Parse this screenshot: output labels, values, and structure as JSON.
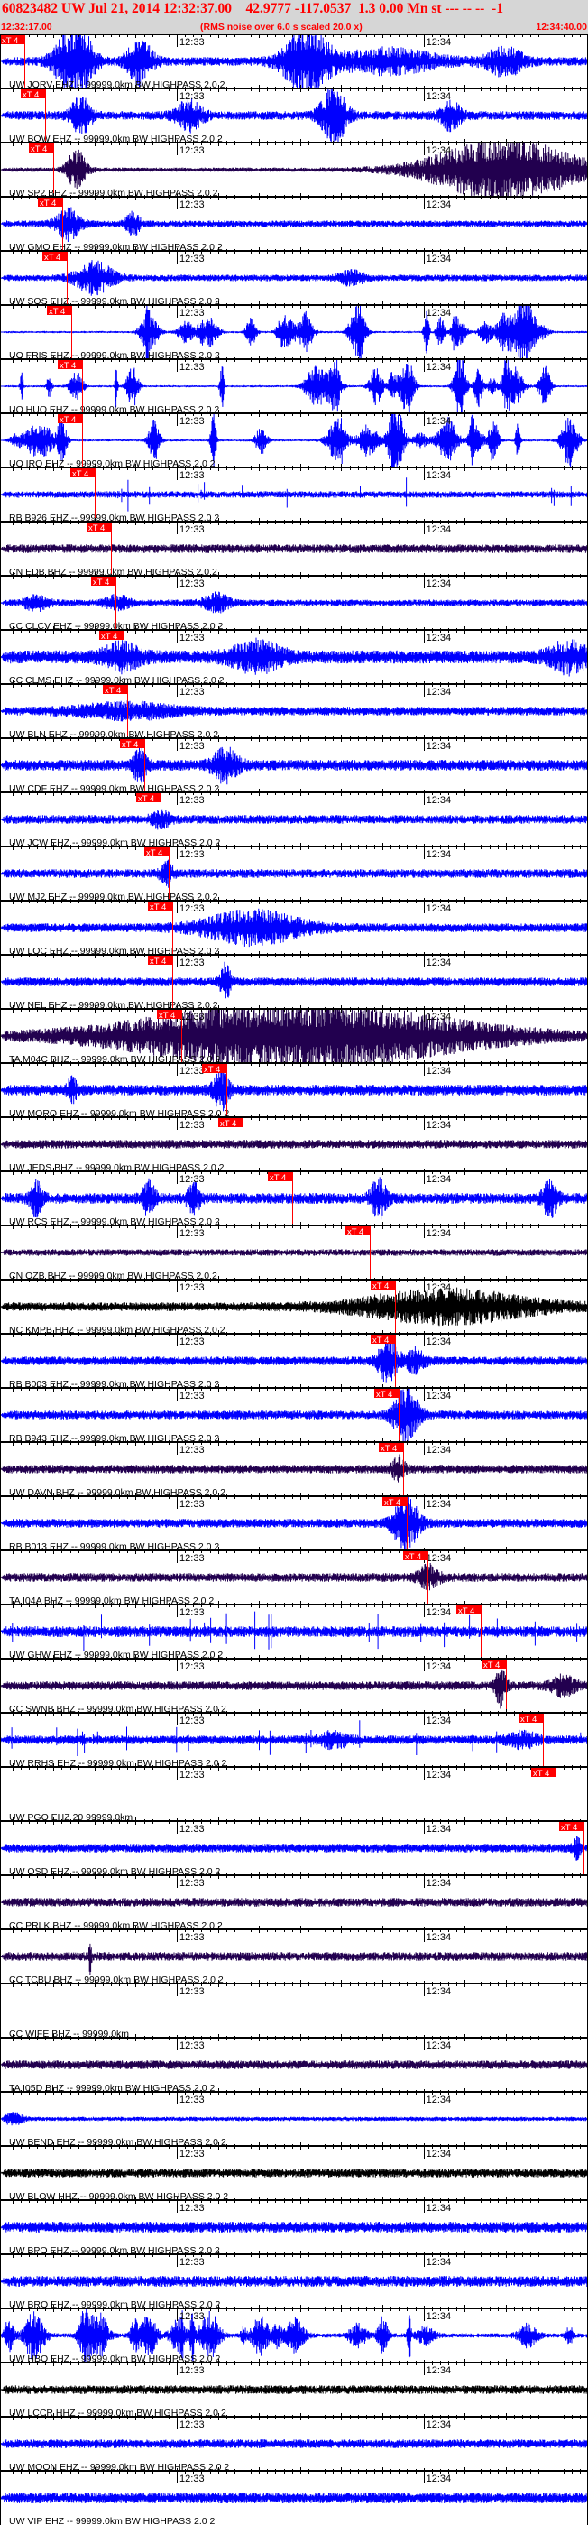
{
  "header": {
    "title": "60823482 UW Jul 21, 2014 12:32:37.00    42.9777 -117.0537  1.3 0.00 Mn st --- -- --  -1",
    "start_time": "12:32:17.00",
    "note": "(RMS noise over 6.0 s scaled 20.0 x)",
    "end_time": "12:34:40.00"
  },
  "chart_data": {
    "type": "line",
    "title": "60823482 UW Jul 21, 2014 12:32:37.00    42.9777 -117.0537  1.3 0.00 Mn st --- -- --  -1",
    "xlim": [
      "12:32:17.00",
      "12:34:40.00"
    ],
    "x_tick_labels": [
      "12:33",
      "12:34"
    ],
    "pick_label": "xT 4",
    "colors": {
      "EHZ": "#0000ff",
      "BHZ": "#22004f",
      "HHZ": "#000000",
      "pick": "#ff0000",
      "axis": "#000000"
    },
    "traces": [
      {
        "label": "UW JORV EHZ -- 99999.0km BW  HIGHPASS  2.0  2",
        "color": "#0000ff",
        "pick": "12:32:22.9"
      },
      {
        "label": "UW BOW EHZ -- 99999.0km BW  HIGHPASS  2.0  2",
        "color": "#0000ff",
        "pick": "12:32:28.0"
      },
      {
        "label": "UW SP2 BHZ -- 99999.0km BW  HIGHPASS  2.0  2",
        "color": "#22004f",
        "pick": "12:32:29.9"
      },
      {
        "label": "UW GMO EHZ -- 99999.0km BW  HIGHPASS  2.0  2",
        "color": "#0000ff",
        "pick": "12:32:32.1"
      },
      {
        "label": "UW SOS EHZ -- 99999.0km BW  HIGHPASS  2.0  2",
        "color": "#0000ff",
        "pick": "12:32:33.2"
      },
      {
        "label": "UO FRIS EHZ -- 99999.0km BW  HIGHPASS  2.0  2",
        "color": "#0000ff",
        "pick": "12:32:34.3"
      },
      {
        "label": "UO HUO EHZ -- 99999.0km BW  HIGHPASS  2.0  2",
        "color": "#0000ff",
        "pick": "12:32:37.0"
      },
      {
        "label": "UO IRO EHZ -- 99999.0km BW  HIGHPASS  2.0  2",
        "color": "#0000ff",
        "pick": "12:32:37.0"
      },
      {
        "label": "RB B926 EHZ -- 99999.0km BW  HIGHPASS  2.0  2",
        "color": "#0000ff",
        "pick": "12:32:40.0"
      },
      {
        "label": "CN EDB BHZ -- 99999.0km BW  HIGHPASS  2.0  2",
        "color": "#22004f",
        "pick": "12:32:44.0"
      },
      {
        "label": "CC CLCV EHZ -- 99999.0km BW  HIGHPASS  2.0  2",
        "color": "#0000ff",
        "pick": "12:32:45.1"
      },
      {
        "label": "CC CLMS EHZ -- 99999.0km BW  HIGHPASS  2.0  2",
        "color": "#0000ff",
        "pick": "12:32:47.1"
      },
      {
        "label": "UW BLN EHZ -- 99999.0km BW  HIGHPASS  2.0  2",
        "color": "#0000ff",
        "pick": "12:32:47.9"
      },
      {
        "label": "UW CDF EHZ -- 99999.0km BW  HIGHPASS  2.0  2",
        "color": "#0000ff",
        "pick": "12:32:52.1"
      },
      {
        "label": "UW JCW EHZ -- 99999.0km BW  HIGHPASS  2.0  2",
        "color": "#0000ff",
        "pick": "12:32:56.0"
      },
      {
        "label": "UW MJ2 EHZ -- 99999.0km BW  HIGHPASS  2.0  2",
        "color": "#0000ff",
        "pick": "12:32:58.0"
      },
      {
        "label": "UW LOC EHZ -- 99999.0km BW  HIGHPASS  2.0  2",
        "color": "#0000ff",
        "pick": "12:32:58.9"
      },
      {
        "label": "UW NEL EHZ -- 99999.0km BW  HIGHPASS  2.0  2",
        "color": "#0000ff",
        "pick": "12:32:58.9"
      },
      {
        "label": "TA M04C BHZ -- 99999.0km BW  HIGHPASS  2.0  2",
        "color": "#22004f",
        "pick": "12:33:01.1"
      },
      {
        "label": "UW MORO EHZ -- 99999.0km BW  HIGHPASS  2.0  2",
        "color": "#0000ff",
        "pick": "12:33:12.1"
      },
      {
        "label": "UW JEDS BHZ -- 99999.0km BW  HIGHPASS  2.0  2",
        "color": "#22004f",
        "pick": "12:33:16.0"
      },
      {
        "label": "UW RCS EHZ -- 99999.0km BW  HIGHPASS  2.0  2",
        "color": "#0000ff",
        "pick": "12:33:28.1"
      },
      {
        "label": "CN OZB BHZ -- 99999.0km BW  HIGHPASS  2.0  2",
        "color": "#22004f",
        "pick": "12:33:46.9"
      },
      {
        "label": "NC KMPB HHZ -- 99999.0km BW  HIGHPASS  2.0  2",
        "color": "#000000",
        "pick": "12:33:53.1"
      },
      {
        "label": "RB B003 EHZ -- 99999.0km BW  HIGHPASS  2.0  2",
        "color": "#0000ff",
        "pick": "12:33:53.1"
      },
      {
        "label": "RB B943 EHZ -- 99999.0km BW  HIGHPASS  2.0  2",
        "color": "#0000ff",
        "pick": "12:33:53.9"
      },
      {
        "label": "UW DAVN BHZ -- 99999.0km BW  HIGHPASS  2.0  2",
        "color": "#22004f",
        "pick": "12:33:55.0"
      },
      {
        "label": "RB B013 EHZ -- 99999.0km BW  HIGHPASS  2.0  2",
        "color": "#0000ff",
        "pick": "12:33:55.9"
      },
      {
        "label": "TA I04A BHZ -- 99999.0km BW  HIGHPASS  2.0  2",
        "color": "#22004f",
        "pick": "12:34:01.0"
      },
      {
        "label": "UW GHW EHZ -- 99999.0km BW  HIGHPASS  2.0  2",
        "color": "#0000ff",
        "pick": "12:34:13.9"
      },
      {
        "label": "CC SWNB BHZ -- 99999.0km BW  HIGHPASS  2.0  2",
        "color": "#22004f",
        "pick": "12:34:20.1"
      },
      {
        "label": "UW RRHS EHZ -- 99999.0km BW  HIGHPASS  2.0  2",
        "color": "#0000ff",
        "pick": "12:34:29.0"
      },
      {
        "label": "UW PGO EHZ 20 99999.0km",
        "color": "#0000ff",
        "pick": "12:34:32.1"
      },
      {
        "label": "UW OSD EHZ -- 99999.0km BW  HIGHPASS  2.0  2",
        "color": "#0000ff",
        "pick": "12:34:38.9"
      },
      {
        "label": "CC PRLK BHZ -- 99999.0km BW  HIGHPASS  2.0  2",
        "color": "#22004f"
      },
      {
        "label": "CC TCBU BHZ -- 99999.0km BW  HIGHPASS  2.0  2",
        "color": "#22004f"
      },
      {
        "label": "CC WIFE BHZ -- 99999.0km",
        "color": "#22004f"
      },
      {
        "label": "TA I05D BHZ -- 99999.0km BW  HIGHPASS  2.0  2",
        "color": "#22004f"
      },
      {
        "label": "UW BEND EHZ -- 99999.0km BW  HIGHPASS  2.0  2",
        "color": "#0000ff"
      },
      {
        "label": "UW BLOW HHZ -- 99999.0km BW  HIGHPASS  2.0  2",
        "color": "#000000"
      },
      {
        "label": "UW BPO EHZ -- 99999.0km BW  HIGHPASS  2.0  2",
        "color": "#0000ff"
      },
      {
        "label": "UW BRO EHZ -- 99999.0km BW  HIGHPASS  2.0  2",
        "color": "#0000ff"
      },
      {
        "label": "UW HBO EHZ -- 99999.0km BW  HIGHPASS  2.0  2",
        "color": "#0000ff"
      },
      {
        "label": "UW LCCR HHZ -- 99999.0km BW  HIGHPASS  2.0  2",
        "color": "#000000"
      },
      {
        "label": "UW MOON EHZ -- 99999.0km BW  HIGHPASS  2.0  2",
        "color": "#0000ff"
      },
      {
        "label": "UW VIP EHZ -- 99999.0km BW  HIGHPASS  2.0  2",
        "color": "#0000ff"
      }
    ]
  }
}
